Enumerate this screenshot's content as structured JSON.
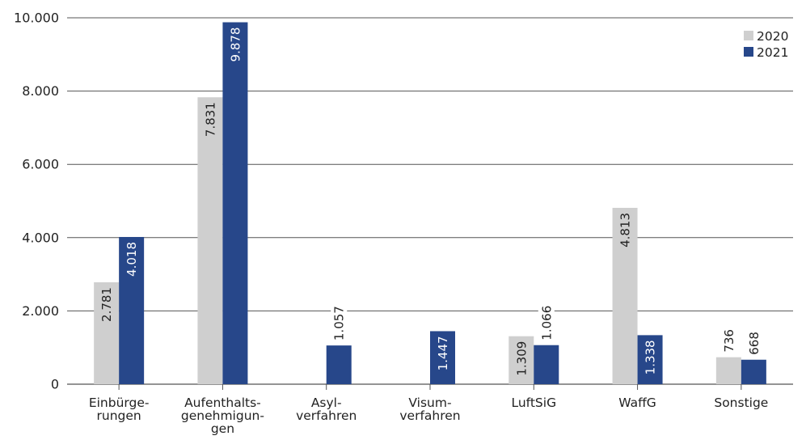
{
  "chart_data": {
    "type": "bar",
    "categories": [
      [
        "Einbürge-",
        "rungen"
      ],
      [
        "Aufenthalts-",
        "genehmigun-",
        "gen"
      ],
      [
        "Asyl-",
        "verfahren"
      ],
      [
        "Visum-",
        "verfahren"
      ],
      [
        "LuftSiG"
      ],
      [
        "WaffG"
      ],
      [
        "Sonstige"
      ]
    ],
    "series": [
      {
        "name": "2020",
        "color": "#cfcfcf",
        "label_color": "#222222",
        "values": [
          2781,
          7831,
          null,
          null,
          1309,
          4813,
          736
        ],
        "labels": [
          "2.781",
          "7.831",
          "",
          "",
          "1.309",
          "4.813",
          "736"
        ],
        "label_pos": [
          "inside",
          "inside",
          "",
          "",
          "inside",
          "inside",
          "above"
        ]
      },
      {
        "name": "2021",
        "color": "#27478a",
        "label_color": "#ffffff",
        "values": [
          4018,
          9878,
          1057,
          1447,
          1066,
          1338,
          668
        ],
        "labels": [
          "4.018",
          "9.878",
          "1.057",
          "1.447",
          "1.066",
          "1.338",
          "668"
        ],
        "label_pos": [
          "inside",
          "inside",
          "above",
          "inside",
          "above",
          "inside",
          "above"
        ]
      }
    ],
    "ylim": [
      0,
      10000
    ],
    "yticks": [
      0,
      2000,
      4000,
      6000,
      8000,
      10000
    ],
    "ytick_labels": [
      "0",
      "2.000",
      "4.000",
      "6.000",
      "8.000",
      "10.000"
    ],
    "grid": true,
    "legend": "top-right",
    "title": "",
    "xlabel": "",
    "ylabel": ""
  }
}
